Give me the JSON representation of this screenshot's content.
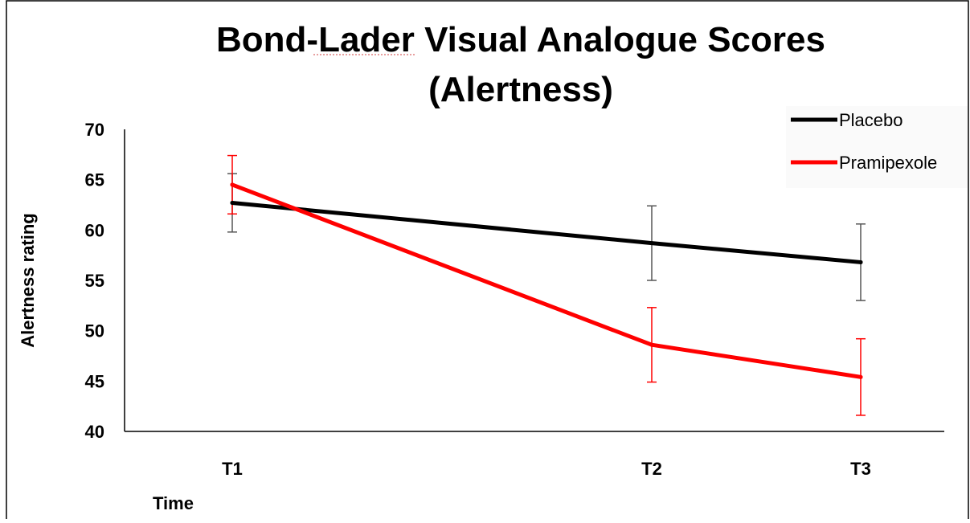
{
  "chart_data": {
    "type": "line",
    "title_line1": "Bond-Lader Visual Analogue Scores",
    "title_line2": "(Alertness)",
    "xlabel": "Time",
    "ylabel": "Alertness rating",
    "categories": [
      "T1",
      "T2",
      "T3"
    ],
    "x": [
      1,
      5,
      7
    ],
    "ylim": [
      40,
      70
    ],
    "yticks": [
      "40",
      "45",
      "50",
      "55",
      "60",
      "65",
      "70"
    ],
    "grid": false,
    "legend_position": "top-right",
    "series": [
      {
        "name": "Placebo",
        "color": "#000000",
        "error_color": "#555555",
        "values": [
          62.7,
          58.7,
          56.8
        ],
        "error": [
          2.9,
          3.7,
          3.8
        ]
      },
      {
        "name": "Pramipexole",
        "color": "#ff0000",
        "error_color": "#ff0000",
        "values": [
          64.5,
          48.6,
          45.4
        ],
        "error": [
          2.9,
          3.7,
          3.8
        ]
      }
    ]
  }
}
